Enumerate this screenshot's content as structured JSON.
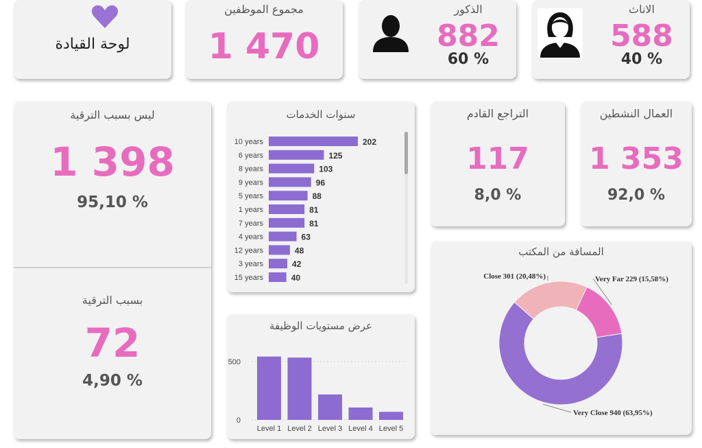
{
  "colors": {
    "accent": "#e76cbe",
    "bar": "#8c6cd0",
    "heart": "#9a72d4"
  },
  "dashboard": {
    "label": "لوحة القيادة",
    "icon": "heart-icon"
  },
  "total": {
    "title": "مجموع الموظفين",
    "value": "1 470"
  },
  "males": {
    "title": "الذكور",
    "value": "882",
    "percent": "60 %",
    "icon": "male-user-icon"
  },
  "females": {
    "title": "الاناث",
    "value": "588",
    "percent": "40 %",
    "icon": "female-user-icon"
  },
  "not_promoted": {
    "title": "ليس بسبب الترقية",
    "value": "1 398",
    "percent": "95,10 %"
  },
  "promoted": {
    "title": "بسبب الترقية",
    "value": "72",
    "percent": "4,90 %"
  },
  "attrition": {
    "title": "التراجع القادم",
    "value": "117",
    "percent": "8,0 %"
  },
  "active": {
    "title": "العمال النشطين",
    "value": "1 353",
    "percent": "92,0 %"
  },
  "years_chart": {
    "title": "سنوات الخدمات"
  },
  "levels_chart": {
    "title": "عرض مستويات الوظيفة"
  },
  "distance_chart": {
    "title": "المسافة من المكتب"
  },
  "chart_data": [
    {
      "type": "bar",
      "orientation": "horizontal",
      "categories": [
        "10 years",
        "6 years",
        "8 years",
        "9 years",
        "5 years",
        "1 years",
        "7 years",
        "4 years",
        "12 years",
        "3 years",
        "15 years"
      ],
      "values": [
        202,
        125,
        103,
        96,
        88,
        81,
        81,
        63,
        48,
        42,
        40
      ]
    },
    {
      "type": "bar",
      "categories": [
        "Level 1",
        "Level 2",
        "Level 3",
        "Level 4",
        "Level 5"
      ],
      "values": [
        543,
        534,
        218,
        106,
        69
      ],
      "yticks": [
        "500",
        "0"
      ],
      "ylim": [
        0,
        600
      ]
    },
    {
      "type": "pie",
      "donut": true,
      "slices": [
        {
          "label": "Very Close 940 (63,95%)",
          "value": 940,
          "color": "#9470d1"
        },
        {
          "label": "Close 301 (20,48%)",
          "value": 301,
          "color": "#f0b3b8"
        },
        {
          "label": "Very Far 229 (15,58%)",
          "value": 229,
          "color": "#e76cbe"
        }
      ]
    }
  ]
}
